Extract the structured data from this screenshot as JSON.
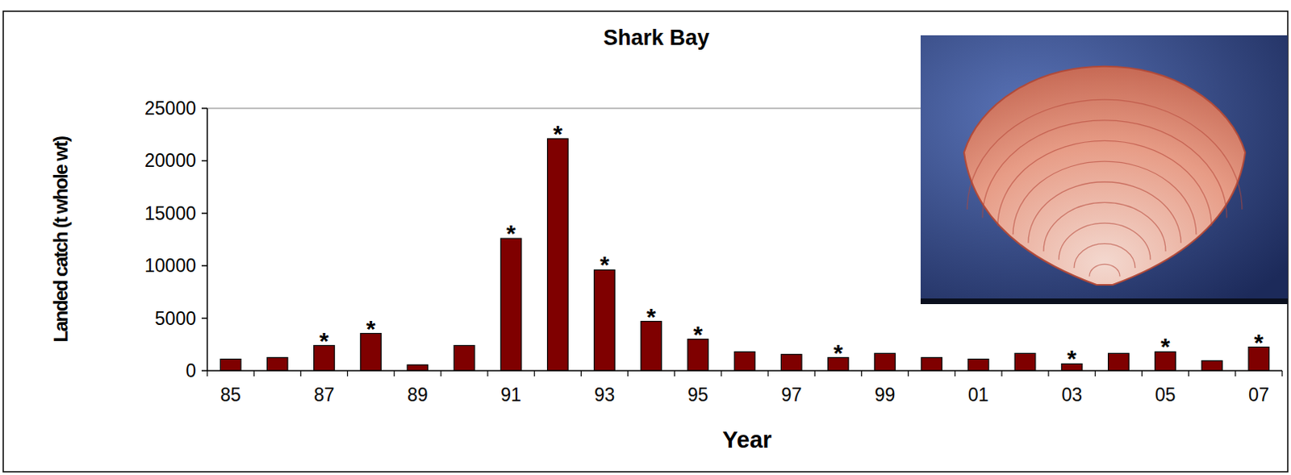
{
  "chart_data": {
    "type": "bar",
    "title": "Shark Bay",
    "x_label": "Year",
    "y_label": "Landed catch (t whole wt)",
    "categories": [
      "85",
      null,
      "87",
      null,
      "89",
      null,
      "91",
      null,
      "93",
      null,
      "95",
      null,
      "97",
      null,
      "99",
      null,
      "01",
      null,
      "03",
      null,
      "05",
      null,
      "07"
    ],
    "values": [
      1100,
      1250,
      2400,
      3550,
      550,
      2400,
      12600,
      22100,
      9600,
      4700,
      3000,
      1800,
      1550,
      1250,
      1650,
      1250,
      1100,
      1650,
      650,
      1650,
      1800,
      950,
      2250
    ],
    "annotations": [
      null,
      null,
      "*",
      "*",
      null,
      null,
      "*",
      "*",
      "*",
      "*",
      "*",
      null,
      null,
      "*",
      null,
      null,
      null,
      null,
      "*",
      null,
      "*",
      null,
      "*"
    ],
    "color": "#7f0000",
    "ylim": [
      0,
      25000
    ],
    "yticks": [
      0,
      5000,
      10000,
      15000,
      20000,
      25000
    ],
    "grid": false
  }
}
